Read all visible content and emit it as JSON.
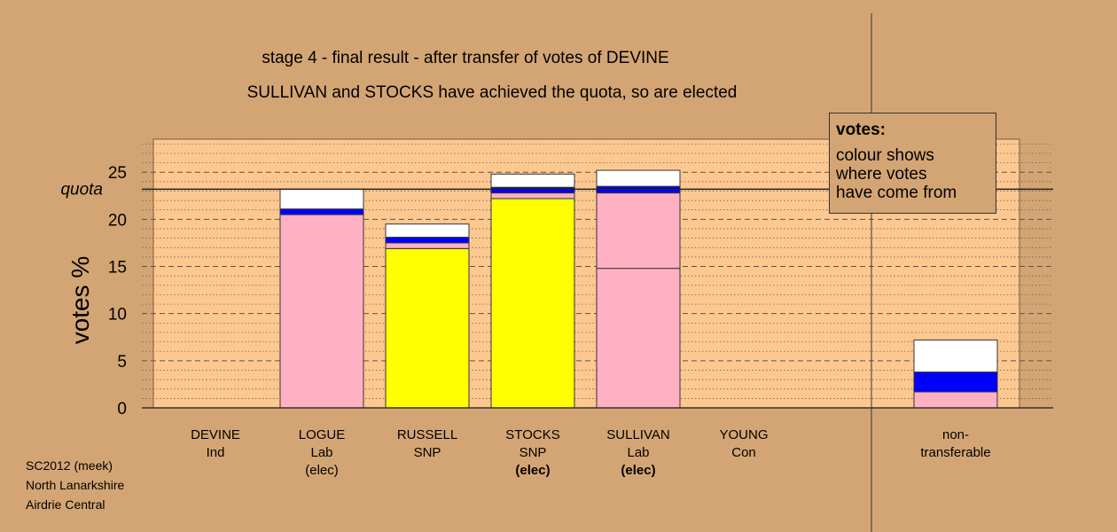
{
  "title_line1": "stage 4 - final result - after transfer of votes of DEVINE",
  "title_line2": "SULLIVAN and STOCKS have achieved the quota, so are elected",
  "legend": {
    "title": "votes:",
    "lines": [
      "colour shows",
      "where votes",
      "have come from"
    ]
  },
  "credits": [
    "SC2012 (meek)",
    "North Lanarkshire",
    "Airdrie Central"
  ],
  "colors": {
    "background": "#d4a574",
    "plot_bg": "#fdc890",
    "pink": "#ffb1c3",
    "yellow": "#ffff00",
    "blue": "#0000ff",
    "white": "#ffffff"
  },
  "chart_data": {
    "type": "bar",
    "stacked": true,
    "ylabel": "votes %",
    "ylim": [
      0,
      28.5
    ],
    "yticks": [
      0,
      5,
      10,
      15,
      20,
      25
    ],
    "quota": 23.2,
    "quota_label": "quota",
    "categories": [
      {
        "name": "DEVINE",
        "party": "Ind",
        "note": "",
        "note_bold": false
      },
      {
        "name": "LOGUE",
        "party": "Lab",
        "note": "(elec)",
        "note_bold": false
      },
      {
        "name": "RUSSELL",
        "party": "SNP",
        "note": "",
        "note_bold": false
      },
      {
        "name": "STOCKS",
        "party": "SNP",
        "note": "(elec)",
        "note_bold": true
      },
      {
        "name": "SULLIVAN",
        "party": "Lab",
        "note": "(elec)",
        "note_bold": true
      },
      {
        "name": "YOUNG",
        "party": "Con",
        "note": "",
        "note_bold": false
      },
      {
        "name": "non-",
        "party": "transferable",
        "note": "",
        "note_bold": false
      }
    ],
    "bars": [
      [],
      [
        {
          "color": "pink",
          "value": 20.5
        },
        {
          "color": "blue",
          "value": 0.6
        },
        {
          "color": "white",
          "value": 2.1
        }
      ],
      [
        {
          "color": "yellow",
          "value": 16.9
        },
        {
          "color": "pink",
          "value": 0.6
        },
        {
          "color": "blue",
          "value": 0.6
        },
        {
          "color": "white",
          "value": 1.4
        }
      ],
      [
        {
          "color": "yellow",
          "value": 22.2
        },
        {
          "color": "pink",
          "value": 0.6
        },
        {
          "color": "blue",
          "value": 0.6
        },
        {
          "color": "white",
          "value": 1.4
        }
      ],
      [
        {
          "color": "pink",
          "value": 14.8
        },
        {
          "color": "pink",
          "value": 8.0
        },
        {
          "color": "blue",
          "value": 0.7
        },
        {
          "color": "white",
          "value": 1.7
        }
      ],
      [],
      [
        {
          "color": "pink",
          "value": 1.7
        },
        {
          "color": "blue",
          "value": 2.1
        },
        {
          "color": "white",
          "value": 3.4
        }
      ]
    ]
  }
}
